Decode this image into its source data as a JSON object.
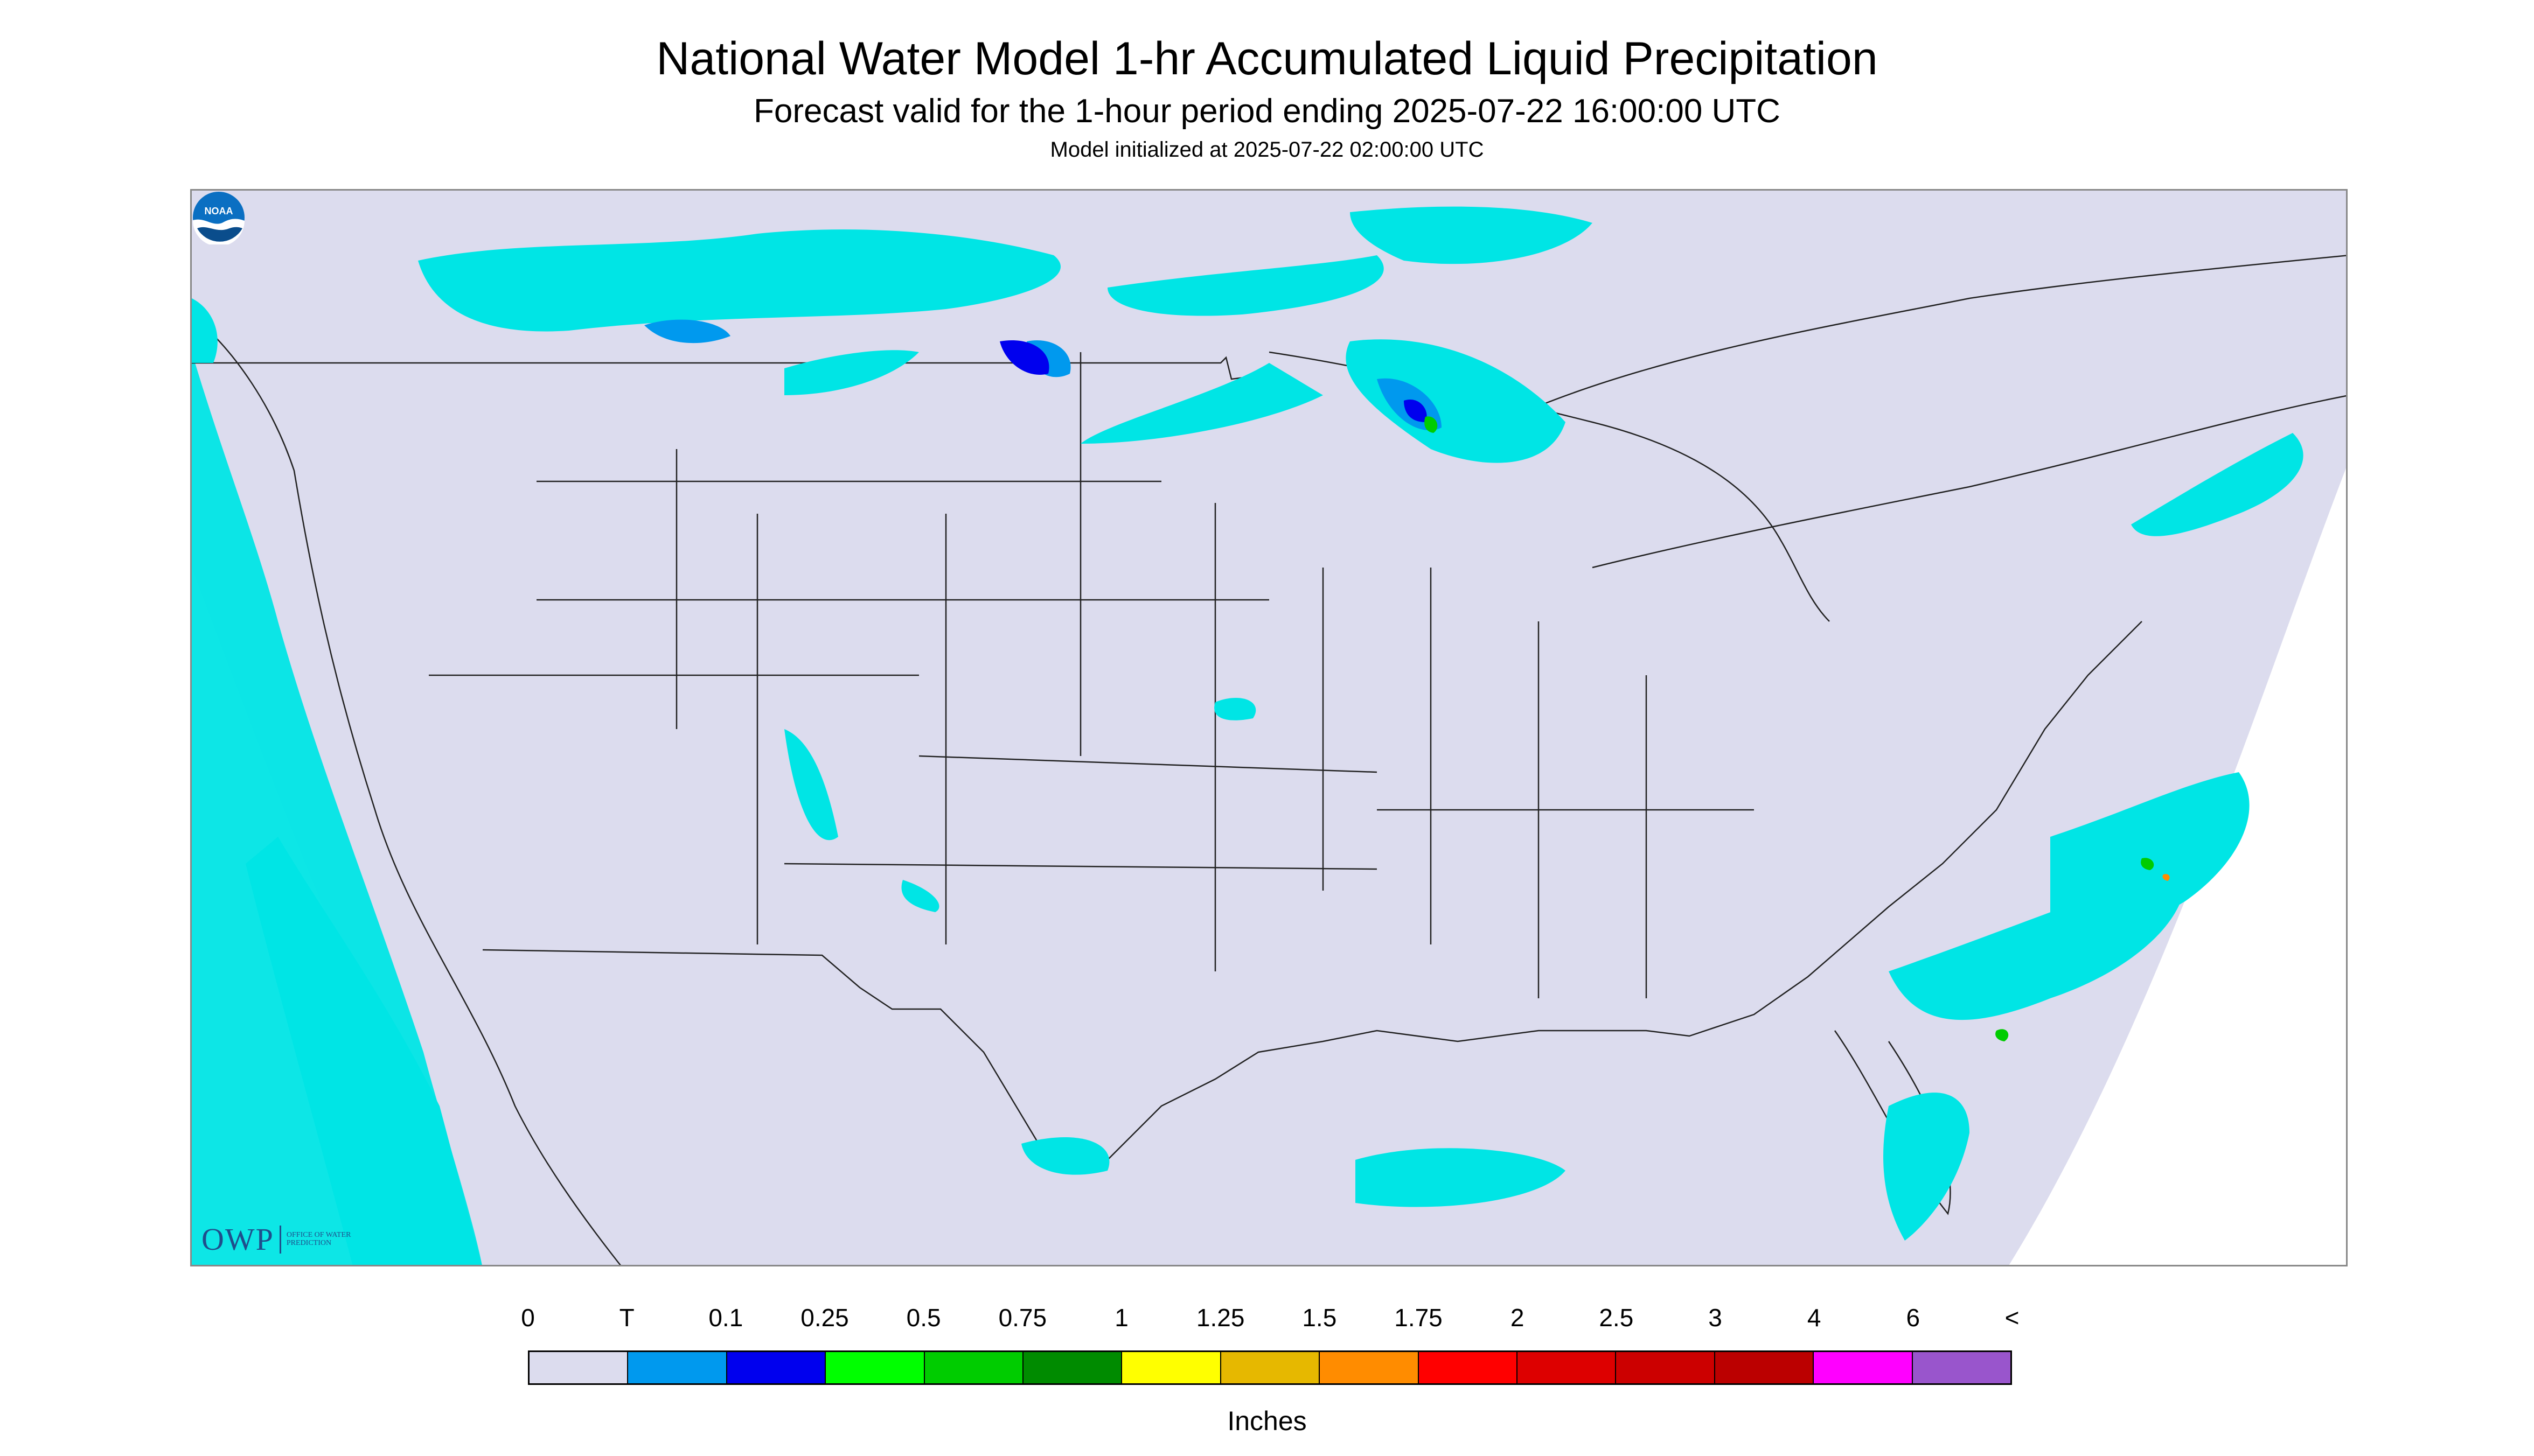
{
  "title": "National Water Model 1-hr Accumulated Liquid Precipitation",
  "subtitle": "Forecast valid for the 1-hour period ending 2025-07-22 16:00:00 UTC",
  "init_line": "Model initialized at 2025-07-22 02:00:00 UTC",
  "logo": {
    "owp_text": "OWP",
    "owp_subtext": "Office of Water Prediction",
    "noaa_text": "NOAA",
    "owp_color": "#1f4e8c",
    "noaa_color": "#0a6fc2"
  },
  "map": {
    "background_color": "#dcdcee",
    "outside_color": "#ffffff",
    "border_color": "#000000",
    "region": "CONUS"
  },
  "legend": {
    "labels": [
      "0",
      "T",
      "0.1",
      "0.25",
      "0.5",
      "0.75",
      "1",
      "1.25",
      "1.5",
      "1.75",
      "2",
      "2.5",
      "3",
      "4",
      "6",
      "<"
    ],
    "colors": [
      "#dcdcee",
      "#00e5e5",
      "#0099ee",
      "#0000ee",
      "#00ff00",
      "#00cc00",
      "#008b00",
      "#ffff00",
      "#e6b800",
      "#ff8c00",
      "#ff0000",
      "#dd0000",
      "#cc0000",
      "#bb0000",
      "#ff00ff",
      "#9955cc"
    ],
    "units": "Inches"
  }
}
